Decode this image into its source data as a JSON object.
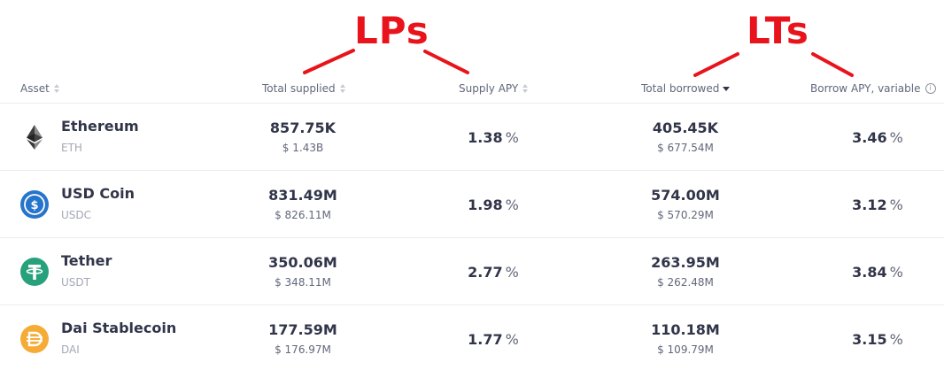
{
  "annotations": {
    "lps": "LPs",
    "lts": "LTs",
    "color": "#e8131b"
  },
  "columns": {
    "asset": "Asset",
    "total_supplied": "Total supplied",
    "supply_apy": "Supply APY",
    "total_borrowed": "Total borrowed",
    "borrow_apy": "Borrow APY, variable"
  },
  "assets": [
    {
      "name": "Ethereum",
      "symbol": "ETH",
      "icon": "ethereum-icon",
      "supplied": "857.75K",
      "supplied_usd": "$ 1.43B",
      "supply_apy": "1.38",
      "borrowed": "405.45K",
      "borrowed_usd": "$ 677.54M",
      "borrow_apy": "3.46"
    },
    {
      "name": "USD Coin",
      "symbol": "USDC",
      "icon": "usdc-icon",
      "supplied": "831.49M",
      "supplied_usd": "$ 826.11M",
      "supply_apy": "1.98",
      "borrowed": "574.00M",
      "borrowed_usd": "$ 570.29M",
      "borrow_apy": "3.12"
    },
    {
      "name": "Tether",
      "symbol": "USDT",
      "icon": "tether-icon",
      "supplied": "350.06M",
      "supplied_usd": "$ 348.11M",
      "supply_apy": "2.77",
      "borrowed": "263.95M",
      "borrowed_usd": "$ 262.48M",
      "borrow_apy": "3.84"
    },
    {
      "name": "Dai Stablecoin",
      "symbol": "DAI",
      "icon": "dai-icon",
      "supplied": "177.59M",
      "supplied_usd": "$ 176.97M",
      "supply_apy": "1.77",
      "borrowed": "110.18M",
      "borrowed_usd": "$ 109.79M",
      "borrow_apy": "3.15"
    }
  ],
  "percent_unit": "%",
  "brand_colors": {
    "usdc": "#2775ca",
    "tether": "#26a17b",
    "dai": "#f5ac37",
    "eth": "#343434"
  }
}
